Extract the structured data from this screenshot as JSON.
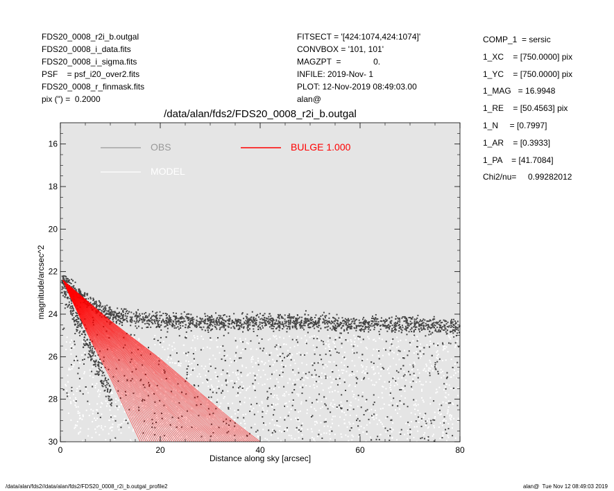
{
  "header": {
    "left": [
      "FDS20_0008_r2i_b.outgal",
      "FDS20_0008_i_data.fits",
      "FDS20_0008_i_sigma.fits",
      "PSF    = psf_i20_over2.fits",
      "FDS20_0008_r_finmask.fits",
      "pix (\") =  0.2000"
    ],
    "middle": [
      "FITSECT = '[424:1074,424:1074]'",
      "CONVBOX = '101, 101'",
      "MAGZPT  =              0.",
      "INFILE: 2019-Nov- 1",
      "PLOT: 12-Nov-2019 08:49:03.00",
      "alan@"
    ]
  },
  "params": [
    "COMP_1  = sersic",
    "1_XC    = [750.0000] pix",
    "1_YC    = [750.0000] pix",
    "1_MAG   = 16.9948",
    "1_RE    = [50.4563] pix",
    "1_N     = [0.7997]",
    "1_AR    = [0.3933]",
    "1_PA    = [41.7084]",
    "",
    "Chi2/nu=     0.99282012"
  ],
  "footer": {
    "left": "/data/alan/fds2//data/alan/fds2/FDS20_0008_r2i_b.outgal_profile2",
    "right": "alan@  Tue Nov 12 08:49:03 2019"
  },
  "chart_data": {
    "type": "scatter",
    "title": "/data/alan/fds2/FDS20_0008_r2i_b.outgal",
    "xlabel": "Distance along sky [arcsec]",
    "ylabel": "magnitude/arcsec^2",
    "xlim": [
      0,
      80
    ],
    "ylim": [
      30,
      15
    ],
    "y_inverted": true,
    "x_ticks": [
      0,
      20,
      40,
      60,
      80
    ],
    "y_ticks": [
      16,
      18,
      20,
      22,
      24,
      26,
      28,
      30
    ],
    "grid": false,
    "legend_placement": "top-left",
    "background": "#e5e5e5",
    "legend": [
      {
        "label": "OBS",
        "color": "#999999"
      },
      {
        "label": "MODEL",
        "color": "#ffffff"
      },
      {
        "label": "BULGE  1.000",
        "color": "#ff0000"
      }
    ],
    "series": [
      {
        "name": "OBS",
        "color": "#444444",
        "description_points": [
          [
            0.3,
            22.4
          ],
          [
            1,
            22.5
          ],
          [
            2,
            22.7
          ],
          [
            4,
            23.1
          ],
          [
            6,
            23.5
          ],
          [
            8,
            23.8
          ],
          [
            10,
            24.0
          ],
          [
            15,
            24.2
          ],
          [
            20,
            24.3
          ],
          [
            30,
            24.4
          ],
          [
            40,
            24.4
          ],
          [
            50,
            24.4
          ],
          [
            60,
            24.5
          ],
          [
            70,
            24.5
          ],
          [
            80,
            24.6
          ]
        ]
      },
      {
        "name": "BULGE  1.000",
        "color": "#ff0000",
        "inner_edge": [
          [
            0.5,
            22.4
          ],
          [
            2,
            23.2
          ],
          [
            4,
            24.2
          ],
          [
            6,
            25.2
          ],
          [
            8,
            26.1
          ],
          [
            10,
            27.0
          ],
          [
            12,
            28.0
          ],
          [
            14,
            29.0
          ],
          [
            16,
            30.0
          ]
        ],
        "outer_edge": [
          [
            0.5,
            22.4
          ],
          [
            3,
            22.9
          ],
          [
            6,
            23.5
          ],
          [
            10,
            24.3
          ],
          [
            15,
            25.2
          ],
          [
            20,
            26.1
          ],
          [
            25,
            27.1
          ],
          [
            30,
            28.1
          ],
          [
            35,
            29.1
          ],
          [
            40,
            30.0
          ]
        ]
      }
    ]
  }
}
